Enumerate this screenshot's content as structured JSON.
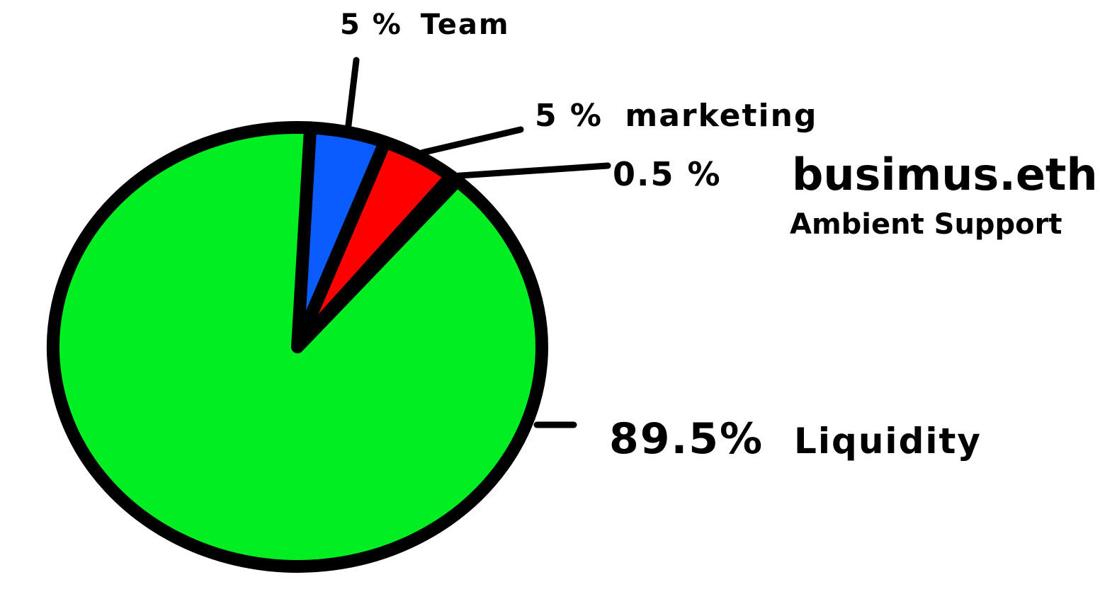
{
  "chart_data": {
    "type": "pie",
    "title": "",
    "slices": [
      {
        "label": "Team",
        "percent_label": "5 %",
        "value": 5,
        "color": "#0a5cff"
      },
      {
        "label": "marketing",
        "percent_label": "5 %",
        "value": 5,
        "color": "#ff0000"
      },
      {
        "label": "busimus.eth",
        "sublabel": "Ambient Support",
        "percent_label": "0.5 %",
        "value": 0.5,
        "color": "#ffaa00"
      },
      {
        "label": "Liquidity",
        "percent_label": "89.5%",
        "value": 89.5,
        "color": "#00ee22"
      }
    ],
    "outline_color": "#000000"
  }
}
